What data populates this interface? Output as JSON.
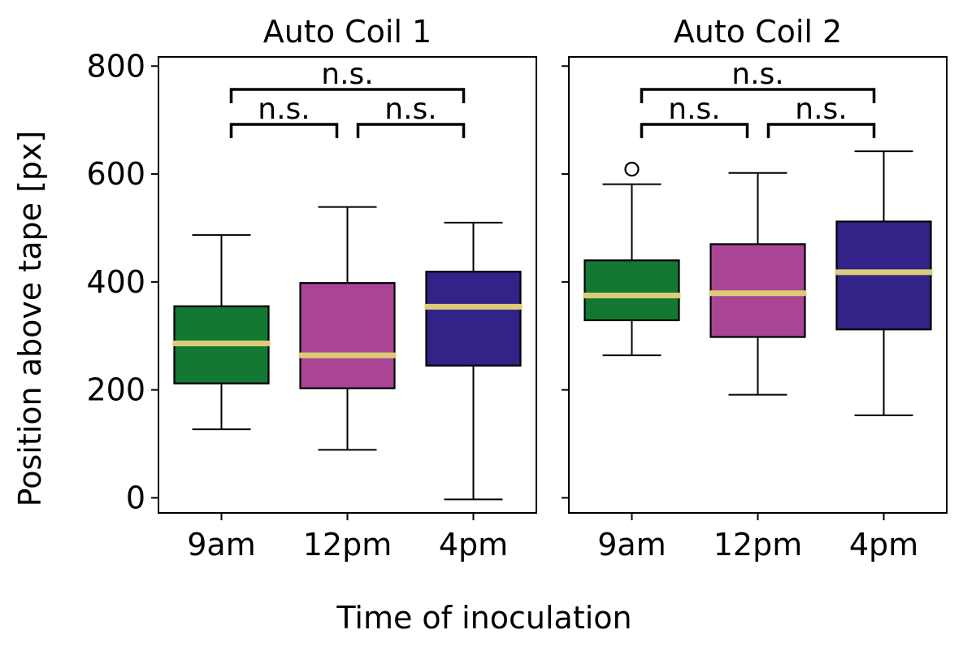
{
  "chart_data": {
    "type": "box",
    "ylabel": "Position above tape [px]",
    "xlabel": "Time of inoculation",
    "categories": [
      "9am",
      "12pm",
      "4pm"
    ],
    "colors": {
      "9am": "#137832",
      "12pm": "#aa4596",
      "4pm": "#332288",
      "median": "#ddcc77"
    },
    "y_ticks": [
      0,
      200,
      400,
      600,
      800
    ],
    "ylim": [
      -28,
      817
    ],
    "panels": [
      {
        "title": "Auto Coil 1",
        "boxes": [
          {
            "category": "9am",
            "whisker_low": 127,
            "q1": 212,
            "median": 286,
            "q3": 355,
            "whisker_high": 487,
            "outliers": []
          },
          {
            "category": "12pm",
            "whisker_low": 89,
            "q1": 203,
            "median": 264,
            "q3": 398,
            "whisker_high": 539,
            "outliers": []
          },
          {
            "category": "4pm",
            "whisker_low": -3,
            "q1": 245,
            "median": 354,
            "q3": 419,
            "whisker_high": 510,
            "outliers": []
          }
        ],
        "significance": [
          {
            "from": 0,
            "to": 1,
            "label": "n.s.",
            "level": 0
          },
          {
            "from": 1,
            "to": 2,
            "label": "n.s.",
            "level": 0
          },
          {
            "from": 0,
            "to": 2,
            "label": "n.s.",
            "level": 1
          }
        ]
      },
      {
        "title": "Auto Coil 2",
        "boxes": [
          {
            "category": "9am",
            "whisker_low": 264,
            "q1": 329,
            "median": 375,
            "q3": 440,
            "whisker_high": 581,
            "outliers": [
              609
            ]
          },
          {
            "category": "12pm",
            "whisker_low": 191,
            "q1": 298,
            "median": 379,
            "q3": 470,
            "whisker_high": 602,
            "outliers": []
          },
          {
            "category": "4pm",
            "whisker_low": 153,
            "q1": 312,
            "median": 418,
            "q3": 512,
            "whisker_high": 642,
            "outliers": []
          }
        ],
        "significance": [
          {
            "from": 0,
            "to": 1,
            "label": "n.s.",
            "level": 0
          },
          {
            "from": 1,
            "to": 2,
            "label": "n.s.",
            "level": 0
          },
          {
            "from": 0,
            "to": 2,
            "label": "n.s.",
            "level": 1
          }
        ]
      }
    ]
  }
}
